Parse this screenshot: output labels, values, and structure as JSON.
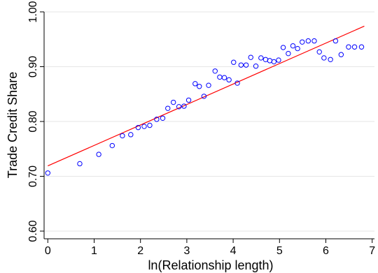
{
  "chart_data": {
    "type": "scatter",
    "title": "",
    "xlabel": "ln(Relationship length)",
    "ylabel": "Trade Credit Share",
    "xlim": [
      -0.08,
      7.05
    ],
    "ylim": [
      0.586,
      1.0
    ],
    "xticks": [
      0,
      1,
      2,
      3,
      4,
      5,
      6,
      7
    ],
    "xtick_labels": [
      "0",
      "1",
      "2",
      "3",
      "4",
      "5",
      "6",
      "7"
    ],
    "yticks": [
      0.6,
      0.7,
      0.8,
      0.9,
      1.0
    ],
    "ytick_labels": [
      "0.60",
      "0.70",
      "0.80",
      "0.90",
      "1.00"
    ],
    "grid": true,
    "series": [
      {
        "marker": "hollow-circle",
        "color": "#0000ff",
        "x": [
          0.0,
          0.69,
          1.1,
          1.39,
          1.61,
          1.79,
          1.95,
          2.08,
          2.2,
          2.35,
          2.48,
          2.59,
          2.71,
          2.83,
          2.94,
          3.04,
          3.18,
          3.27,
          3.37,
          3.47,
          3.61,
          3.71,
          3.81,
          3.91,
          4.01,
          4.09,
          4.17,
          4.28,
          4.38,
          4.49,
          4.6,
          4.7,
          4.79,
          4.88,
          4.98,
          5.08,
          5.19,
          5.29,
          5.39,
          5.49,
          5.62,
          5.75,
          5.86,
          5.96,
          6.1,
          6.21,
          6.33,
          6.49,
          6.62,
          6.77
        ],
        "y": [
          0.706,
          0.723,
          0.74,
          0.756,
          0.774,
          0.776,
          0.789,
          0.791,
          0.793,
          0.804,
          0.806,
          0.824,
          0.835,
          0.827,
          0.828,
          0.839,
          0.869,
          0.864,
          0.846,
          0.866,
          0.892,
          0.881,
          0.88,
          0.876,
          0.908,
          0.87,
          0.903,
          0.903,
          0.917,
          0.901,
          0.916,
          0.913,
          0.911,
          0.909,
          0.912,
          0.935,
          0.924,
          0.938,
          0.933,
          0.945,
          0.947,
          0.947,
          0.927,
          0.916,
          0.913,
          0.947,
          0.922,
          0.936,
          0.936,
          0.936
        ]
      },
      {
        "type": "line",
        "color": "#ff0000",
        "x": [
          0.0,
          6.83
        ],
        "y": [
          0.719,
          0.974
        ]
      }
    ]
  }
}
